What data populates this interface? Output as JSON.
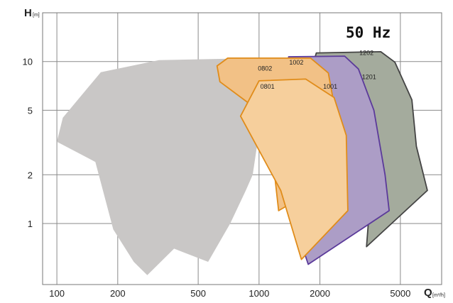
{
  "chart_data": {
    "type": "area",
    "title": "",
    "badge": "50 Hz",
    "x_axis": {
      "label": "Q",
      "unit": "[m³/h]",
      "scale": "log",
      "range": [
        85,
        8000
      ],
      "ticks": [
        "100",
        "200",
        "500",
        "1000",
        "2000",
        "5000"
      ]
    },
    "y_axis": {
      "label": "H",
      "unit": "[m]",
      "scale": "log",
      "range": [
        0.42,
        20
      ],
      "ticks": [
        "1",
        "2",
        "5",
        "10"
      ]
    },
    "grid": true,
    "legend": "none",
    "series": [
      {
        "name": "",
        "fill": "#c9c7c6",
        "stroke": "none",
        "points": [
          [
            100,
            3.2
          ],
          [
            107,
            4.5
          ],
          [
            165,
            8.6
          ],
          [
            320,
            10.2
          ],
          [
            1000,
            10.5
          ],
          [
            1130,
            10.2
          ],
          [
            930,
            2.0
          ],
          [
            860,
            1.6
          ],
          [
            720,
            1.0
          ],
          [
            560,
            0.58
          ],
          [
            380,
            0.7
          ],
          [
            280,
            0.48
          ],
          [
            240,
            0.58
          ],
          [
            190,
            0.92
          ],
          [
            155,
            2.4
          ]
        ]
      },
      {
        "name": "1202/1201",
        "fill": "#a4ab9d",
        "stroke": "#444444",
        "points": [
          [
            1920,
            11.3
          ],
          [
            4000,
            11.5
          ],
          [
            4700,
            9.9
          ],
          [
            5700,
            5.8
          ],
          [
            6000,
            3.0
          ],
          [
            6800,
            1.6
          ],
          [
            3400,
            0.72
          ],
          [
            3500,
            1.15
          ],
          [
            2700,
            1.0
          ],
          [
            1850,
            2.2
          ],
          [
            1700,
            6.8
          ]
        ]
      },
      {
        "name": "1002/1001",
        "fill": "#ac9dc6",
        "stroke": "#5b3a9a",
        "points": [
          [
            1400,
            10.7
          ],
          [
            2650,
            10.8
          ],
          [
            3100,
            9.0
          ],
          [
            3700,
            5.0
          ],
          [
            4200,
            2.0
          ],
          [
            4400,
            1.2
          ],
          [
            1750,
            0.56
          ],
          [
            1500,
            1.0
          ],
          [
            1300,
            3.5
          ]
        ]
      },
      {
        "name": "0802",
        "fill": "#f2c186",
        "stroke": "#e08c1a",
        "points": [
          [
            700,
            10.5
          ],
          [
            1800,
            10.5
          ],
          [
            2200,
            8.5
          ],
          [
            2700,
            2.1
          ],
          [
            1250,
            1.2
          ],
          [
            1110,
            4.5
          ],
          [
            640,
            7.5
          ],
          [
            620,
            9.4
          ]
        ]
      },
      {
        "name": "0801",
        "fill": "#f6cf9c",
        "stroke": "#e08c1a",
        "points": [
          [
            1000,
            7.6
          ],
          [
            1700,
            7.8
          ],
          [
            2350,
            6.0
          ],
          [
            2700,
            3.5
          ],
          [
            2750,
            1.2
          ],
          [
            1620,
            0.6
          ],
          [
            1280,
            1.6
          ],
          [
            810,
            4.6
          ]
        ]
      }
    ],
    "annotations": [
      {
        "text": "1202",
        "x": 3400,
        "y": 11.0
      },
      {
        "text": "1201",
        "x": 3500,
        "y": 7.8
      },
      {
        "text": "1002",
        "x": 1530,
        "y": 9.6
      },
      {
        "text": "1001",
        "x": 2250,
        "y": 6.8
      },
      {
        "text": "0802",
        "x": 1070,
        "y": 8.8
      },
      {
        "text": "0801",
        "x": 1100,
        "y": 6.8
      }
    ]
  }
}
